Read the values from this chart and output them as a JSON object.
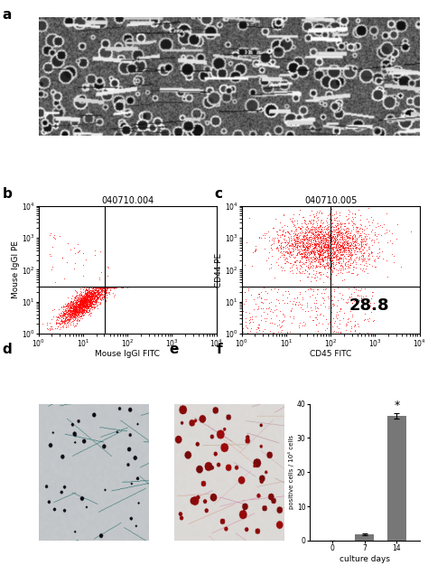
{
  "panel_labels": [
    "a",
    "b",
    "c",
    "d",
    "e",
    "f"
  ],
  "panel_label_fontsize": 11,
  "panel_label_fontweight": "bold",
  "flow_b_title": "040710.004",
  "flow_c_title": "040710.005",
  "flow_b_xlabel": "Mouse IgGI FITC",
  "flow_b_ylabel": "Mouse IgGI PE",
  "flow_c_xlabel": "CD45 FITC",
  "flow_c_ylabel": "CD44 PE",
  "flow_annotation": "28.8",
  "flow_annotation_fontsize": 13,
  "flow_annotation_fontweight": "bold",
  "bar_categories": [
    "0",
    "7",
    "14"
  ],
  "bar_values": [
    0.0,
    1.8,
    36.5
  ],
  "bar_errors": [
    0.05,
    0.25,
    0.8
  ],
  "bar_color": "#777777",
  "bar_xlabel": "culture days",
  "bar_ylabel": "positive cells / 10⁴ cells",
  "bar_ylim": [
    0,
    40
  ],
  "bar_yticks": [
    0,
    10,
    20,
    30,
    40
  ],
  "bar_significance": "*",
  "bar_significance_fontsize": 9,
  "background_color": "#ffffff",
  "flow_bg_color": "#ffffff",
  "flow_dot_color": "#ff0000",
  "title_fontsize": 7,
  "tick_fontsize": 5.5,
  "axis_label_fontsize": 6.5,
  "seed_b": 42,
  "seed_c": 123,
  "n_dots_b_main": 2000,
  "n_dots_b_scatter": 40,
  "n_dots_c_main": 2200,
  "n_dots_c_lower": 350
}
